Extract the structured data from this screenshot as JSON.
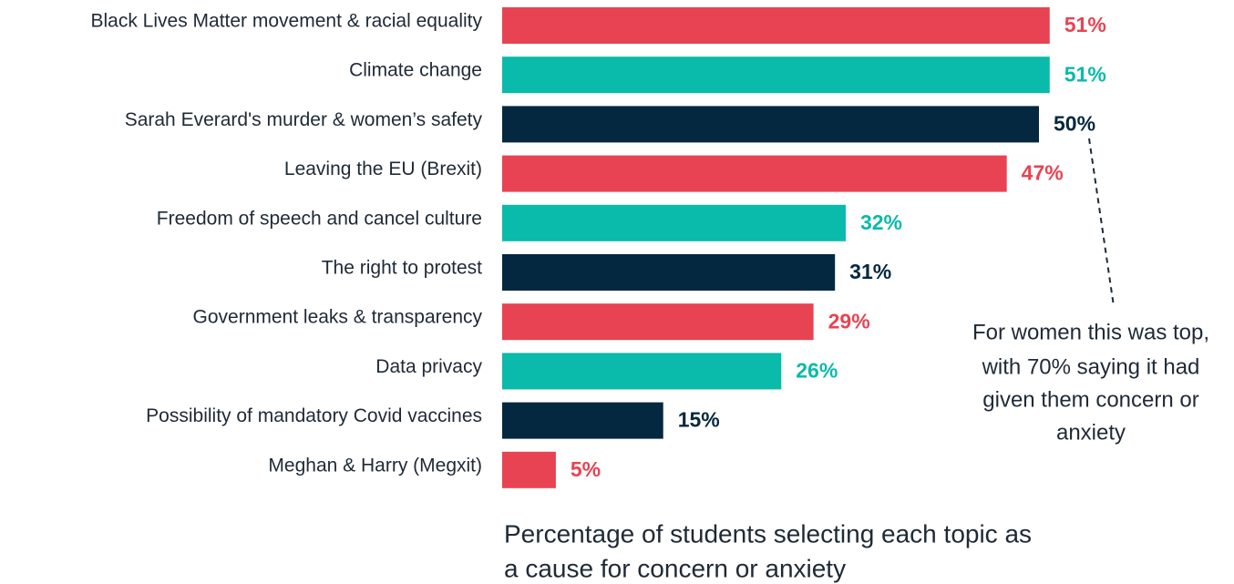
{
  "chart_data": {
    "type": "bar",
    "orientation": "horizontal",
    "categories": [
      "Black Lives Matter movement & racial equality",
      "Climate change",
      "Sarah Everard's murder & women’s safety",
      "Leaving the EU (Brexit)",
      "Freedom of speech and cancel culture",
      "The right to protest",
      "Government leaks & transparency",
      "Data privacy",
      "Possibility of mandatory Covid vaccines",
      "Meghan & Harry (Megxit)"
    ],
    "values": [
      51,
      51,
      50,
      47,
      32,
      31,
      29,
      26,
      15,
      5
    ],
    "value_labels": [
      "51%",
      "51%",
      "50%",
      "47%",
      "32%",
      "31%",
      "29%",
      "26%",
      "15%",
      "5%"
    ],
    "colors": [
      "#e84352",
      "#0abaaa",
      "#03283f",
      "#e84352",
      "#0abaaa",
      "#03283f",
      "#e84352",
      "#0abaaa",
      "#03283f",
      "#e84352"
    ],
    "annotation": [
      "For women this was top,",
      "with 70% saying it had",
      "given them concern or",
      "anxiety"
    ],
    "x_label": [
      "Percentage of students selecting each topic as",
      "a cause for concern or anxiety"
    ]
  }
}
